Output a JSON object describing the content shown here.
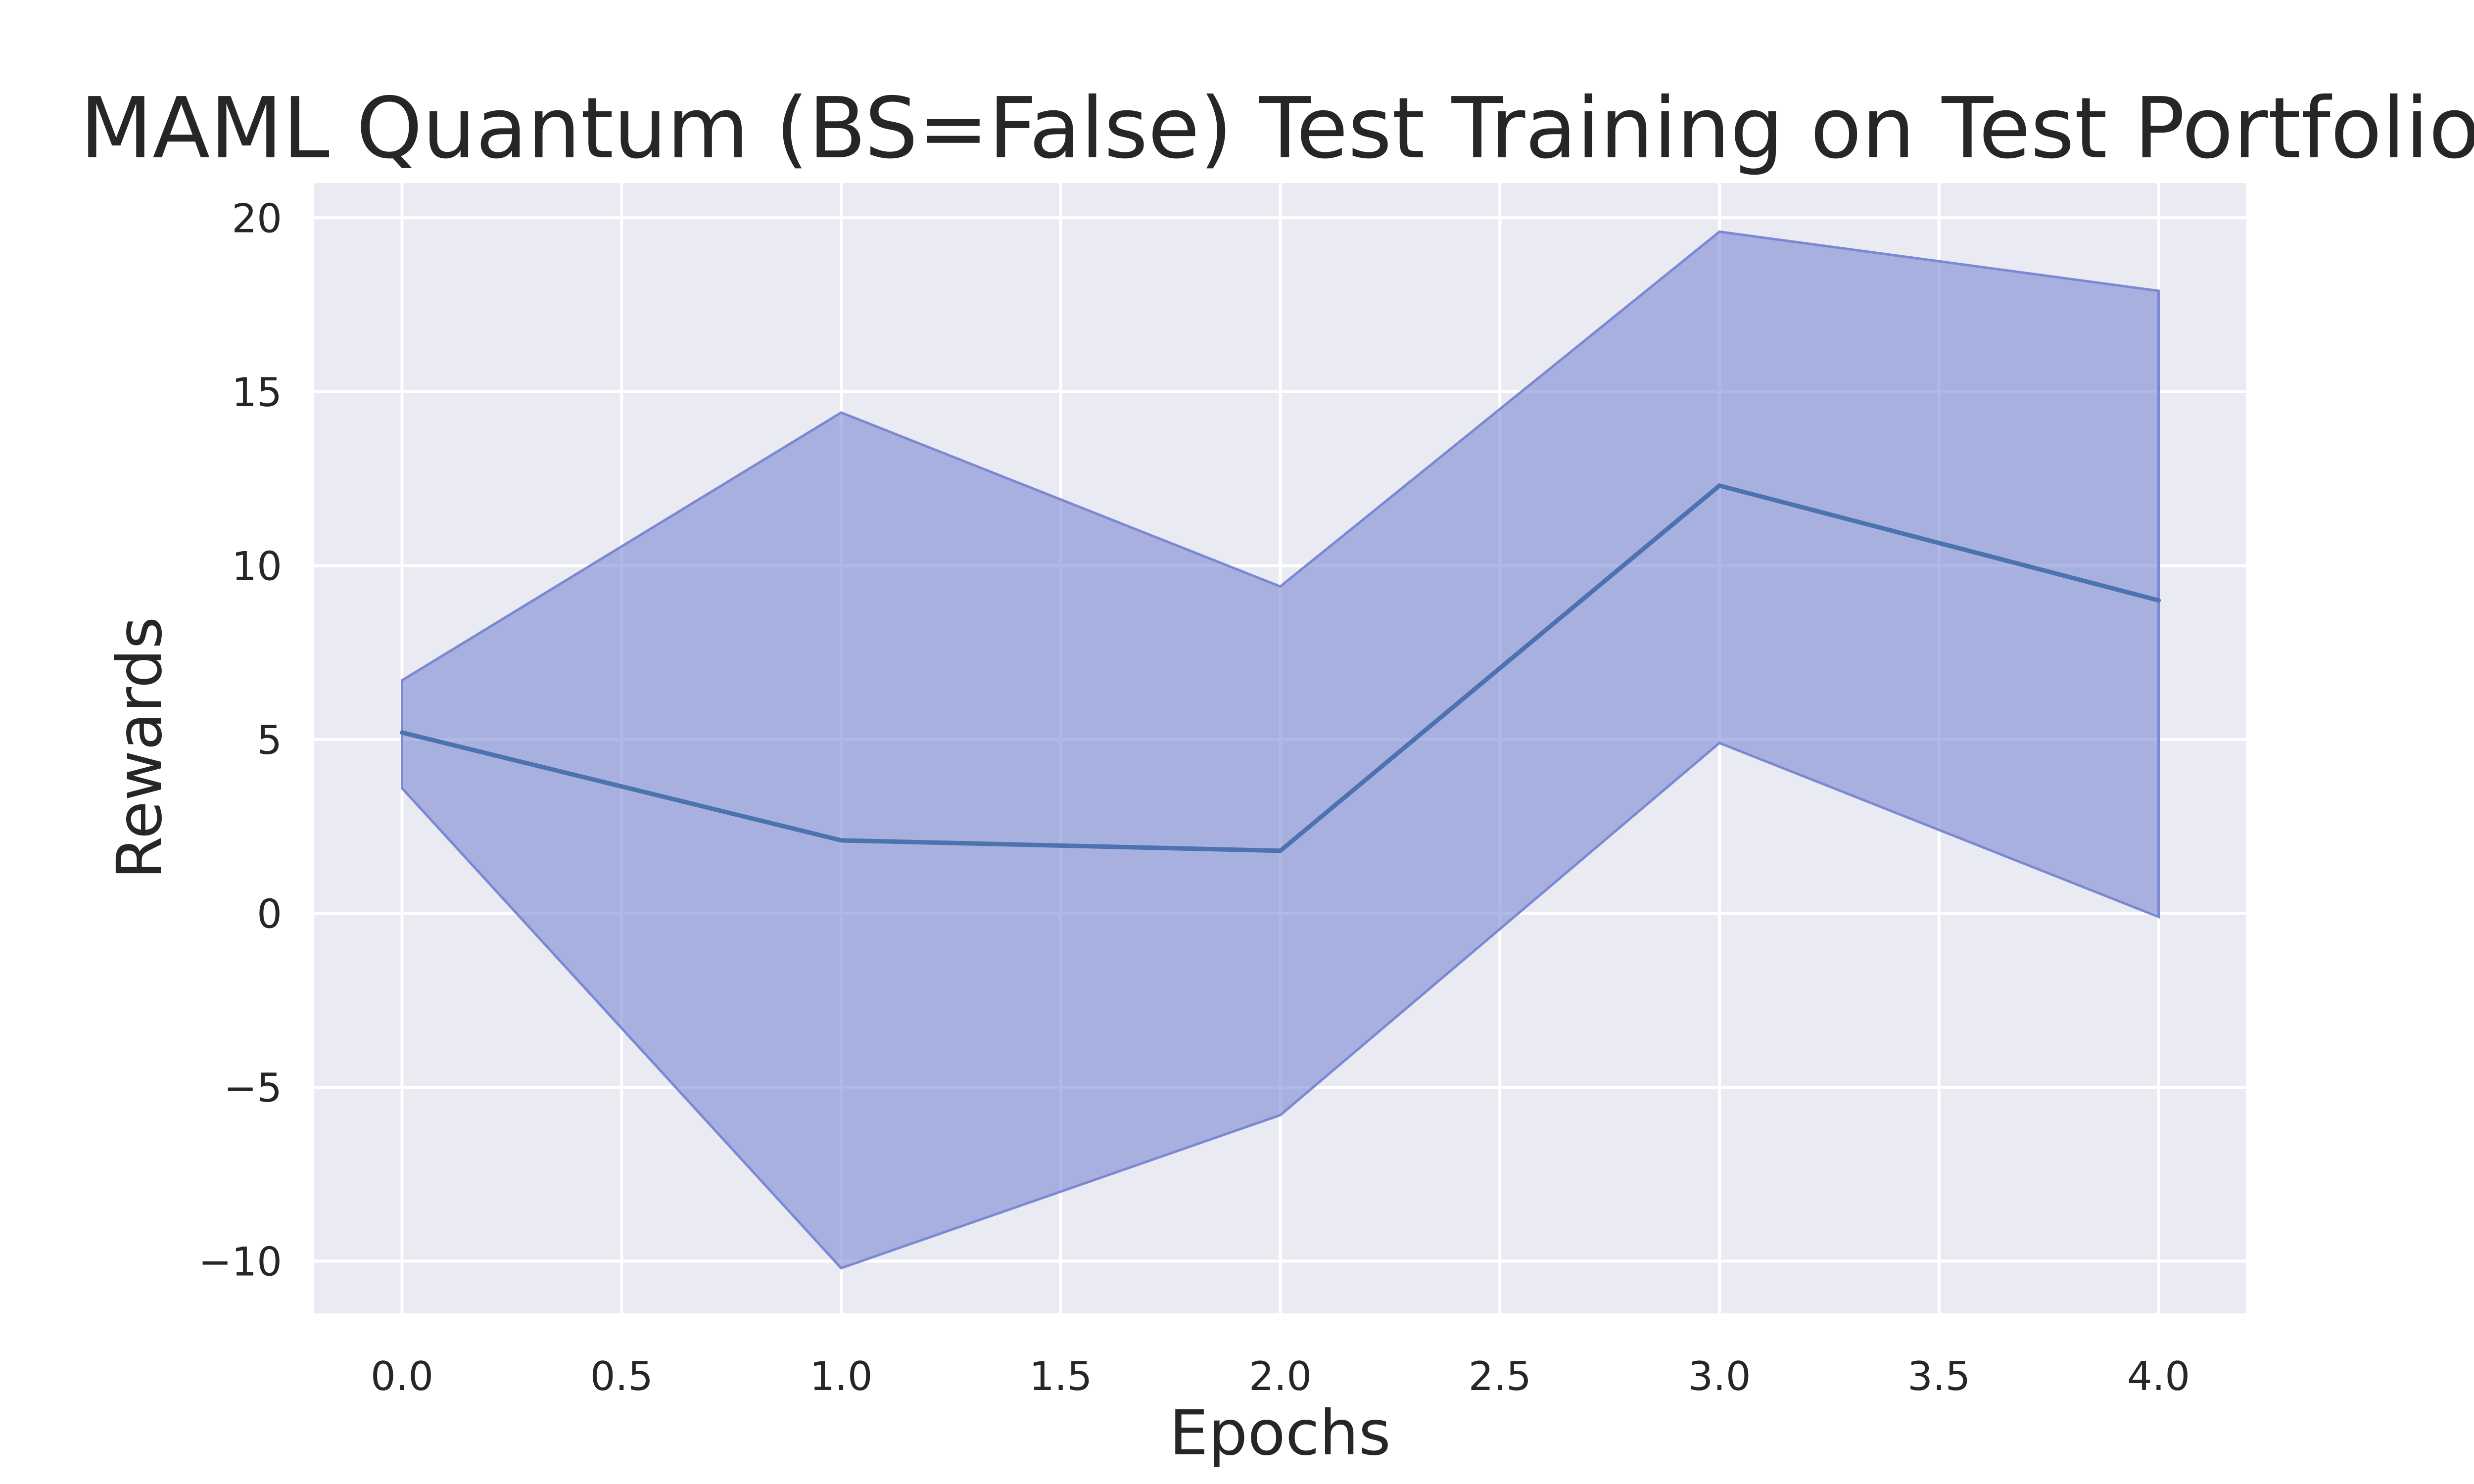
{
  "chart_data": {
    "type": "line",
    "title": "MAML Quantum (BS=False) Test Training on Test Portfolio",
    "xlabel": "Epochs",
    "ylabel": "Rewards",
    "xlim": [
      -0.2,
      4.2
    ],
    "ylim": [
      -11.5,
      21.0
    ],
    "x_ticks": [
      0.0,
      0.5,
      1.0,
      1.5,
      2.0,
      2.5,
      3.0,
      3.5,
      4.0
    ],
    "x_tick_labels": [
      "0.0",
      "0.5",
      "1.0",
      "1.5",
      "2.0",
      "2.5",
      "3.0",
      "3.5",
      "4.0"
    ],
    "y_ticks": [
      -10,
      -5,
      0,
      5,
      10,
      15,
      20
    ],
    "y_tick_labels": [
      "−10",
      "−5",
      "0",
      "5",
      "10",
      "15",
      "20"
    ],
    "grid": true,
    "legend": "none",
    "x": [
      0.0,
      1.0,
      2.0,
      3.0,
      4.0
    ],
    "series": [
      {
        "values": [
          5.2,
          2.1,
          1.8,
          12.3,
          9.0
        ],
        "lower": [
          3.6,
          -10.2,
          -5.8,
          4.9,
          -0.1
        ],
        "upper": [
          6.7,
          14.4,
          9.4,
          19.6,
          17.9
        ],
        "line_color": "#4c72b0",
        "band_color": "#7b88d3"
      }
    ],
    "colors": {
      "plot_background": "#eaeaf2",
      "grid": "#ffffff",
      "text": "#262626"
    }
  }
}
